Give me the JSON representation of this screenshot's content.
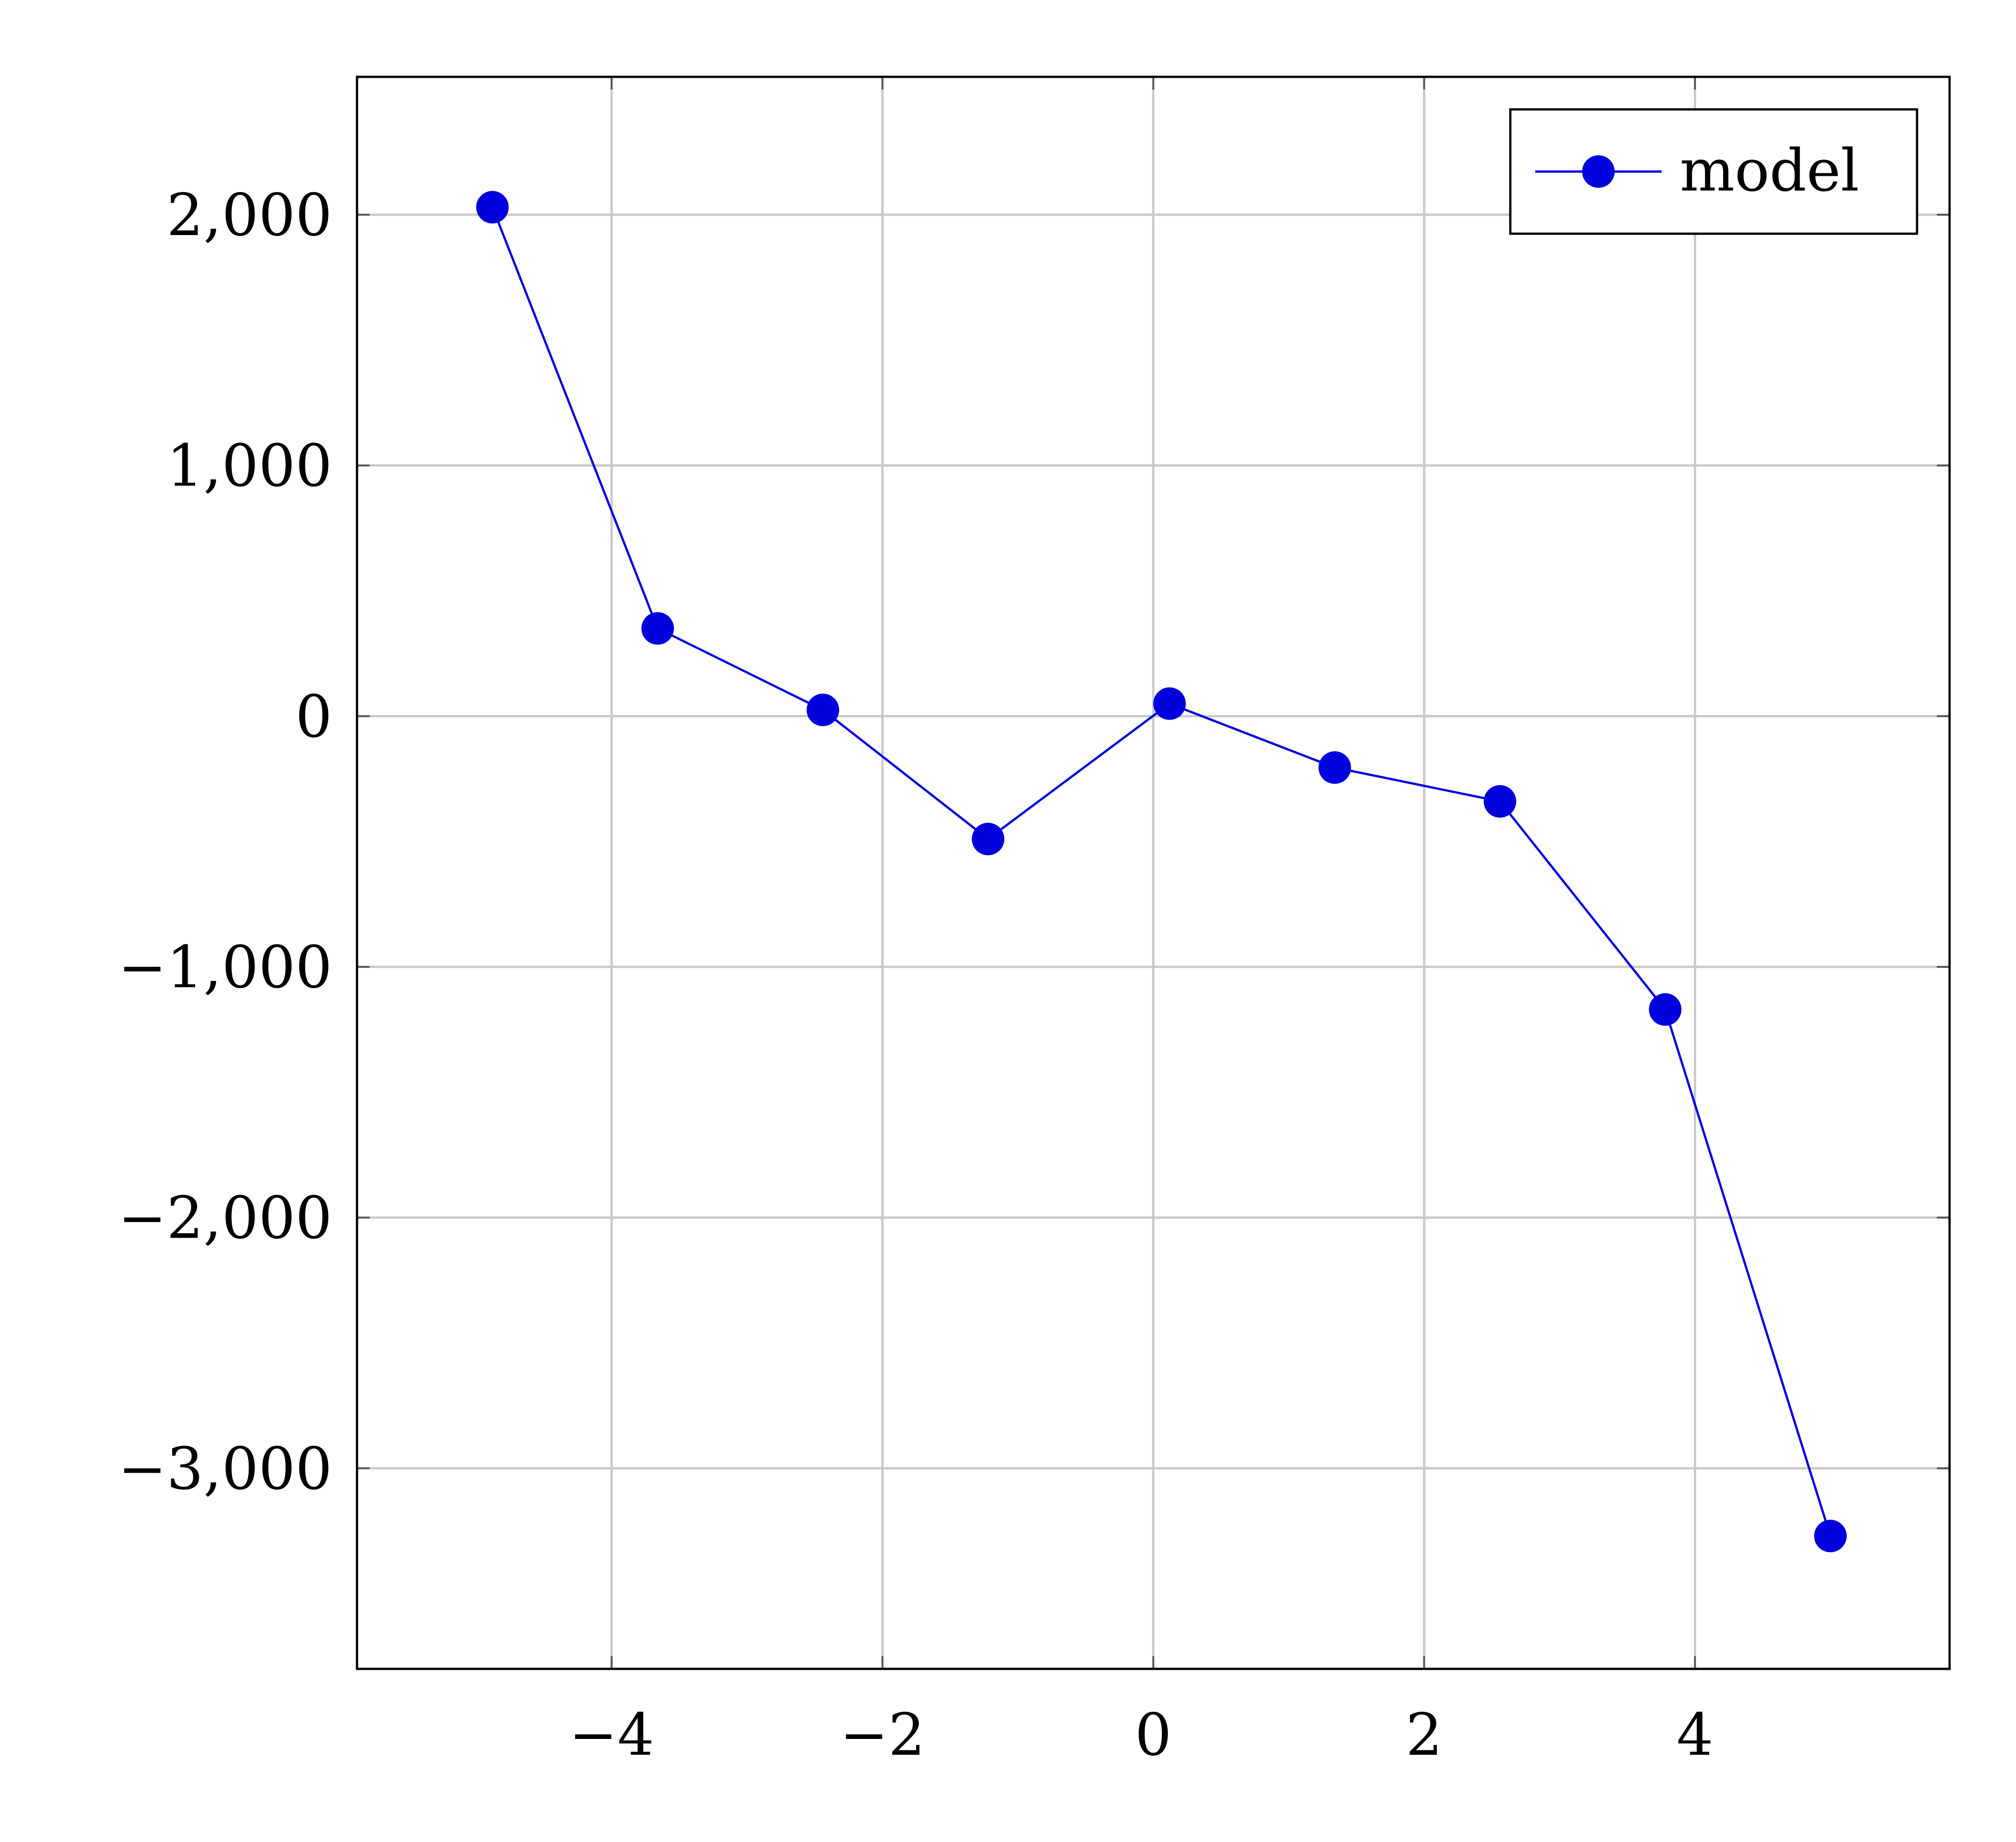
{
  "chart_data": {
    "type": "line",
    "title": "",
    "xlabel": "",
    "ylabel": "",
    "xlim": [
      -5.88,
      5.88
    ],
    "ylim": [
      -3800,
      2550
    ],
    "x_ticks": [
      -4,
      -2,
      0,
      2,
      4
    ],
    "x_tick_labels": [
      "−4",
      "−2",
      "0",
      "2",
      "4"
    ],
    "y_ticks": [
      2000,
      1000,
      0,
      -1000,
      -2000,
      -3000
    ],
    "y_tick_labels": [
      "2,000",
      "1,000",
      "0",
      "−1,000",
      "−2,000",
      "−3,000"
    ],
    "grid": true,
    "legend_position": "top-right",
    "series": [
      {
        "name": "model",
        "color": "#0000dd",
        "marker": "circle",
        "x": [
          -4.88,
          -3.66,
          -2.44,
          -1.22,
          0.12,
          1.34,
          2.56,
          3.78,
          5.0
        ],
        "y": [
          2030,
          350,
          25,
          -490,
          50,
          -205,
          -340,
          -1170,
          -3270
        ]
      }
    ]
  }
}
